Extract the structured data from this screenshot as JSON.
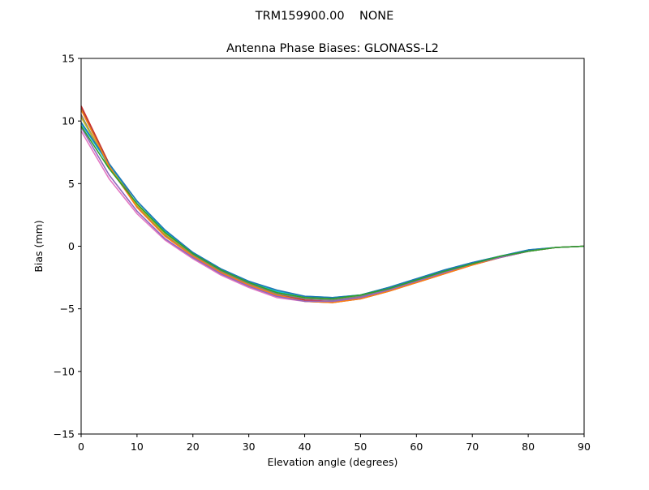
{
  "chart_data": {
    "type": "line",
    "suptitle": "TRM159900.00    NONE",
    "title": "Antenna Phase Biases: GLONASS-L2",
    "xlabel": "Elevation angle (degrees)",
    "ylabel": "Bias (mm)",
    "xlim": [
      0,
      90
    ],
    "ylim": [
      -15,
      15
    ],
    "xticks": [
      0,
      10,
      20,
      30,
      40,
      50,
      60,
      70,
      80,
      90
    ],
    "yticks": [
      -15,
      -10,
      -5,
      0,
      5,
      10,
      15
    ],
    "xtick_labels": [
      "0",
      "10",
      "20",
      "30",
      "40",
      "50",
      "60",
      "70",
      "80",
      "90"
    ],
    "ytick_labels": [
      "−15",
      "−10",
      "−5",
      "0",
      "5",
      "10",
      "15"
    ],
    "grid": false,
    "legend": "none",
    "x": [
      0,
      5,
      10,
      15,
      20,
      25,
      30,
      35,
      40,
      45,
      50,
      55,
      60,
      65,
      70,
      75,
      80,
      85,
      90
    ],
    "series": [
      {
        "color": "#d62728",
        "values": [
          11.2,
          6.6,
          3.3,
          1.0,
          -0.7,
          -2.0,
          -3.0,
          -3.8,
          -4.3,
          -4.4,
          -4.1,
          -3.5,
          -2.8,
          -2.1,
          -1.5,
          -0.9,
          -0.4,
          -0.1,
          0.0
        ]
      },
      {
        "color": "#8c564b",
        "values": [
          11.0,
          6.5,
          3.2,
          0.9,
          -0.8,
          -2.1,
          -3.1,
          -3.9,
          -4.4,
          -4.5,
          -4.2,
          -3.6,
          -2.9,
          -2.2,
          -1.5,
          -0.9,
          -0.4,
          -0.1,
          0.0
        ]
      },
      {
        "color": "#e377c2",
        "values": [
          9.2,
          5.4,
          2.6,
          0.5,
          -1.0,
          -2.3,
          -3.3,
          -4.1,
          -4.4,
          -4.4,
          -4.1,
          -3.5,
          -2.8,
          -2.1,
          -1.4,
          -0.9,
          -0.4,
          -0.1,
          0.0
        ]
      },
      {
        "color": "#7f7f7f",
        "values": [
          10.5,
          6.3,
          3.2,
          0.9,
          -0.7,
          -2.0,
          -3.0,
          -3.8,
          -4.2,
          -4.3,
          -4.0,
          -3.4,
          -2.7,
          -2.0,
          -1.4,
          -0.9,
          -0.4,
          -0.1,
          0.0
        ]
      },
      {
        "color": "#bcbd22",
        "values": [
          10.3,
          6.4,
          3.3,
          1.0,
          -0.6,
          -1.9,
          -2.9,
          -3.7,
          -4.1,
          -4.2,
          -3.9,
          -3.3,
          -2.7,
          -2.0,
          -1.4,
          -0.8,
          -0.4,
          -0.1,
          0.0
        ]
      },
      {
        "color": "#17becf",
        "values": [
          9.8,
          6.5,
          3.6,
          1.2,
          -0.5,
          -1.8,
          -2.8,
          -3.6,
          -4.0,
          -4.1,
          -3.9,
          -3.3,
          -2.6,
          -1.9,
          -1.3,
          -0.8,
          -0.3,
          -0.1,
          0.0
        ]
      },
      {
        "color": "#1f77b4",
        "values": [
          9.9,
          6.6,
          3.6,
          1.3,
          -0.5,
          -1.8,
          -2.8,
          -3.5,
          -4.0,
          -4.1,
          -3.9,
          -3.3,
          -2.6,
          -1.9,
          -1.3,
          -0.8,
          -0.3,
          -0.1,
          0.0
        ]
      },
      {
        "color": "#ff7f0e",
        "values": [
          10.9,
          6.4,
          3.1,
          0.8,
          -0.8,
          -2.1,
          -3.1,
          -3.9,
          -4.4,
          -4.5,
          -4.2,
          -3.6,
          -2.9,
          -2.2,
          -1.5,
          -0.9,
          -0.4,
          -0.1,
          0.0
        ]
      },
      {
        "color": "#9467bd",
        "values": [
          9.5,
          5.7,
          2.8,
          0.6,
          -0.9,
          -2.2,
          -3.2,
          -4.0,
          -4.4,
          -4.4,
          -4.1,
          -3.5,
          -2.8,
          -2.1,
          -1.4,
          -0.9,
          -0.4,
          -0.1,
          0.0
        ]
      },
      {
        "color": "#2ca02c",
        "values": [
          9.6,
          6.2,
          3.4,
          1.1,
          -0.6,
          -1.9,
          -2.9,
          -3.7,
          -4.1,
          -4.2,
          -3.9,
          -3.4,
          -2.7,
          -2.0,
          -1.4,
          -0.8,
          -0.4,
          -0.1,
          0.0
        ]
      }
    ]
  }
}
